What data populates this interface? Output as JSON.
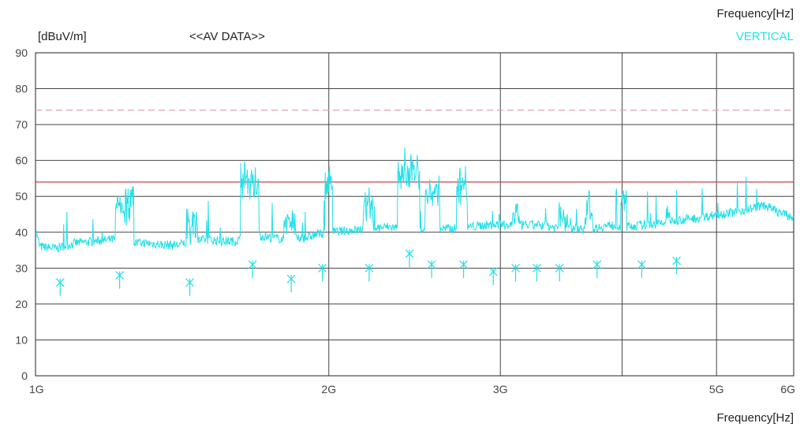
{
  "chart_data": {
    "type": "line",
    "ylabel": "[dBuV/m]",
    "subtitle": "<<AV DATA>>",
    "xlabel_top": "Frequency[Hz]",
    "xlabel_bottom": "Frequency[Hz]",
    "legend": [
      {
        "name": "VERTICAL",
        "color": "#22e0e8"
      }
    ],
    "legend_placement": "top-right",
    "x_scale": "log",
    "xlim_ghz": [
      1,
      6
    ],
    "ylim": [
      0,
      90
    ],
    "y_ticks": [
      0,
      10,
      20,
      30,
      40,
      50,
      60,
      70,
      80,
      90
    ],
    "x_ticks": [
      {
        "label": "1G",
        "ghz": 1
      },
      {
        "label": "2G",
        "ghz": 2
      },
      {
        "label": "3G",
        "ghz": 3
      },
      {
        "label": "5G",
        "ghz": 5
      },
      {
        "label": "6G",
        "ghz": 6
      }
    ],
    "extra_vertical_grid_ghz": [
      4
    ],
    "grid": true,
    "limit_lines": [
      {
        "value": 54,
        "color": "#d04040",
        "style": "solid"
      },
      {
        "value": 74,
        "color": "#e0a0a8",
        "style": "dashed"
      }
    ],
    "series": [
      {
        "color": "#22e0e8",
        "baseline": [
          [
            1.0,
            41
          ],
          [
            1.01,
            36
          ],
          [
            1.05,
            35.5
          ],
          [
            1.1,
            37
          ],
          [
            1.15,
            37.5
          ],
          [
            1.2,
            38
          ],
          [
            1.25,
            37
          ],
          [
            1.3,
            37
          ],
          [
            1.35,
            36.5
          ],
          [
            1.4,
            36.5
          ],
          [
            1.45,
            37.5
          ],
          [
            1.5,
            38
          ],
          [
            1.55,
            37.5
          ],
          [
            1.6,
            37.5
          ],
          [
            1.65,
            38.5
          ],
          [
            1.7,
            39
          ],
          [
            1.75,
            38.5
          ],
          [
            1.8,
            38
          ],
          [
            1.85,
            38
          ],
          [
            1.9,
            38.5
          ],
          [
            1.95,
            39.5
          ],
          [
            2.0,
            40
          ],
          [
            2.1,
            40.5
          ],
          [
            2.2,
            41
          ],
          [
            2.3,
            41.5
          ],
          [
            2.4,
            41
          ],
          [
            2.5,
            41
          ],
          [
            2.6,
            41
          ],
          [
            2.7,
            41
          ],
          [
            2.8,
            41.5
          ],
          [
            2.9,
            42
          ],
          [
            3.0,
            42
          ],
          [
            3.1,
            42
          ],
          [
            3.2,
            42
          ],
          [
            3.3,
            42
          ],
          [
            3.4,
            41.5
          ],
          [
            3.5,
            41
          ],
          [
            3.6,
            41
          ],
          [
            3.7,
            41
          ],
          [
            3.8,
            41.5
          ],
          [
            3.9,
            42
          ],
          [
            4.0,
            41.5
          ],
          [
            4.2,
            42
          ],
          [
            4.4,
            42.5
          ],
          [
            4.6,
            43.5
          ],
          [
            4.8,
            44
          ],
          [
            5.0,
            45
          ],
          [
            5.2,
            45.5
          ],
          [
            5.4,
            46.5
          ],
          [
            5.6,
            47.5
          ],
          [
            5.8,
            45.5
          ],
          [
            6.0,
            44
          ]
        ],
        "bumps": [
          [
            1.22,
            1.25,
            53
          ],
          [
            1.44,
            1.46,
            48
          ],
          [
            1.64,
            1.68,
            60
          ],
          [
            1.81,
            1.84,
            49
          ],
          [
            1.99,
            2.01,
            60
          ],
          [
            2.18,
            2.21,
            54
          ],
          [
            2.38,
            2.45,
            63
          ],
          [
            2.53,
            2.58,
            57
          ],
          [
            2.72,
            2.76,
            59
          ],
          [
            2.98,
            3.0,
            47
          ],
          [
            3.1,
            3.13,
            51
          ],
          [
            3.28,
            3.33,
            47
          ],
          [
            3.46,
            3.52,
            49
          ],
          [
            3.68,
            3.72,
            52
          ],
          [
            4.0,
            4.03,
            55
          ],
          [
            4.45,
            4.48,
            51
          ]
        ]
      }
    ],
    "markers": [
      {
        "ghz": 1.06,
        "value": 26
      },
      {
        "ghz": 1.22,
        "value": 28
      },
      {
        "ghz": 1.44,
        "value": 26
      },
      {
        "ghz": 1.67,
        "value": 31
      },
      {
        "ghz": 1.83,
        "value": 27
      },
      {
        "ghz": 1.97,
        "value": 30
      },
      {
        "ghz": 2.2,
        "value": 30
      },
      {
        "ghz": 2.42,
        "value": 34
      },
      {
        "ghz": 2.55,
        "value": 31
      },
      {
        "ghz": 2.75,
        "value": 31
      },
      {
        "ghz": 2.95,
        "value": 29
      },
      {
        "ghz": 3.11,
        "value": 30
      },
      {
        "ghz": 3.27,
        "value": 30
      },
      {
        "ghz": 3.45,
        "value": 30
      },
      {
        "ghz": 3.77,
        "value": 31
      },
      {
        "ghz": 4.19,
        "value": 31
      },
      {
        "ghz": 4.55,
        "value": 32
      }
    ]
  }
}
